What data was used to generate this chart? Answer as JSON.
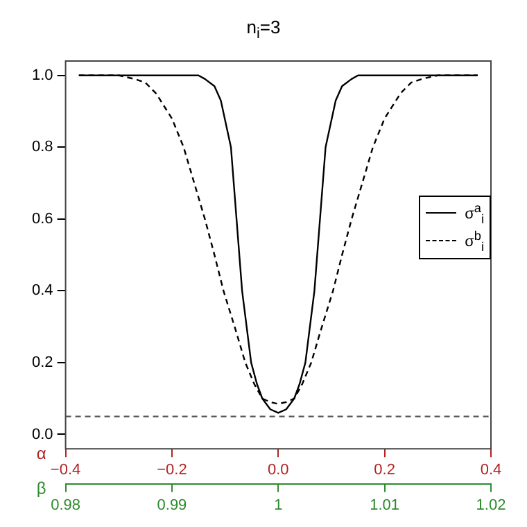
{
  "chart_data": {
    "type": "line",
    "title": "n$_{i}$=3",
    "xlabel": "α",
    "x2label": "β",
    "xlim": [
      -0.4,
      0.4
    ],
    "xticks": [
      {
        "value": -0.4,
        "label": "−0.4"
      },
      {
        "value": -0.2,
        "label": "−0.2"
      },
      {
        "value": 0,
        "label": "0.0"
      },
      {
        "value": 0.2,
        "label": "0.2"
      },
      {
        "value": 0.4,
        "label": "0.4"
      }
    ],
    "x2lim": [
      0.98,
      1.02
    ],
    "x2ticks": [
      0.98,
      0.99,
      1,
      1.01,
      1.02
    ],
    "ylim": [
      -0.04,
      1.04
    ],
    "yticks": [
      {
        "value": 0,
        "label": "0.0"
      },
      {
        "value": 0.2,
        "label": "0.2"
      },
      {
        "value": 0.4,
        "label": "0.4"
      },
      {
        "value": 0.6,
        "label": "0.6"
      },
      {
        "value": 0.8,
        "label": "0.8"
      },
      {
        "value": 1,
        "label": "1.0"
      }
    ],
    "series": [
      {
        "name": "σ$^{a}$$_{i}$",
        "color": "#000000",
        "line_style": "solid",
        "x": [
          -0.375,
          -0.15,
          -0.138,
          -0.12,
          -0.108,
          -0.089,
          -0.068,
          -0.051,
          -0.04,
          -0.03,
          -0.015,
          0,
          0.015,
          0.03,
          0.04,
          0.051,
          0.068,
          0.089,
          0.108,
          0.12,
          0.138,
          0.15,
          0.375
        ],
        "values": [
          1,
          1,
          0.99,
          0.97,
          0.93,
          0.8,
          0.4,
          0.2,
          0.14,
          0.1,
          0.07,
          0.06,
          0.07,
          0.1,
          0.14,
          0.2,
          0.4,
          0.8,
          0.93,
          0.97,
          0.99,
          1,
          1
        ]
      },
      {
        "name": "σ$^{b}$$_{i}$",
        "color": "#000000",
        "line_style": "dashed",
        "x": [
          -0.375,
          -0.3,
          -0.27,
          -0.25,
          -0.23,
          -0.2,
          -0.178,
          -0.16,
          -0.138,
          -0.12,
          -0.103,
          -0.08,
          -0.062,
          -0.045,
          -0.03,
          -0.015,
          0,
          0.015,
          0.03,
          0.045,
          0.062,
          0.08,
          0.103,
          0.12,
          0.138,
          0.16,
          0.178,
          0.2,
          0.23,
          0.25,
          0.27,
          0.3,
          0.375
        ],
        "values": [
          1,
          1,
          0.99,
          0.98,
          0.95,
          0.88,
          0.8,
          0.71,
          0.6,
          0.5,
          0.4,
          0.29,
          0.2,
          0.14,
          0.1,
          0.09,
          0.085,
          0.09,
          0.1,
          0.14,
          0.2,
          0.29,
          0.4,
          0.5,
          0.6,
          0.71,
          0.8,
          0.88,
          0.95,
          0.98,
          0.99,
          1,
          1
        ]
      }
    ],
    "ref_lines": [
      {
        "axis": "y",
        "value": 0.05,
        "color": "#555555",
        "line_style": "dashed"
      }
    ],
    "marker": "none",
    "grid": false,
    "legend": "right"
  }
}
